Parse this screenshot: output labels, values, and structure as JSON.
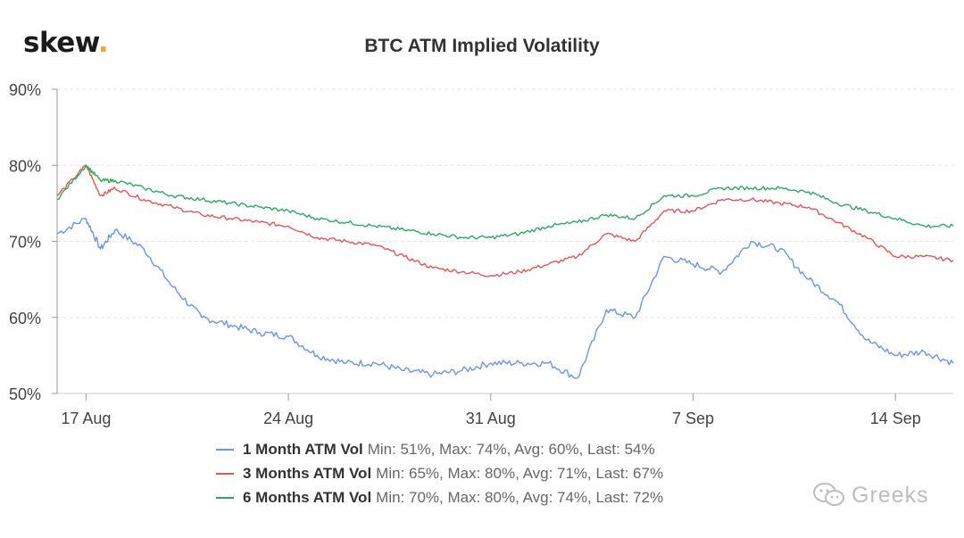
{
  "logo": {
    "text": "skew",
    "dot": "."
  },
  "watermark": {
    "text": "Greeks",
    "icon": "wechat-icon"
  },
  "chart_data": {
    "type": "line",
    "title": "BTC ATM Implied Volatility",
    "xlabel": "",
    "ylabel": "",
    "x_ticks": [
      "17 Aug",
      "24 Aug",
      "31 Aug",
      "7 Sep",
      "14 Sep"
    ],
    "y_ticks": [
      "50%",
      "60%",
      "70%",
      "80%",
      "90%"
    ],
    "ylim": [
      50,
      90
    ],
    "xlim_days": "2020-08-16 to 2020-09-16",
    "grid": true,
    "legend_position": "bottom",
    "series": [
      {
        "name": "1 Month ATM Vol",
        "stats": "Min: 51%, Max: 74%, Avg: 60%, Last: 54%",
        "color": "#6a95e8",
        "x": [
          "2020-08-16",
          "2020-08-17",
          "2020-08-17 12:00",
          "2020-08-18",
          "2020-08-19",
          "2020-08-20",
          "2020-08-21",
          "2020-08-22",
          "2020-08-23",
          "2020-08-24",
          "2020-08-25",
          "2020-08-26",
          "2020-08-27",
          "2020-08-28",
          "2020-08-29",
          "2020-08-30",
          "2020-08-31",
          "2020-09-01",
          "2020-09-02",
          "2020-09-03",
          "2020-09-04",
          "2020-09-05",
          "2020-09-06",
          "2020-09-07",
          "2020-09-08",
          "2020-09-09",
          "2020-09-10",
          "2020-09-11",
          "2020-09-12",
          "2020-09-13",
          "2020-09-14",
          "2020-09-15",
          "2020-09-16"
        ],
        "values": [
          71,
          73,
          69,
          71.5,
          69,
          64,
          60,
          59,
          58,
          57.5,
          55,
          54,
          54,
          53,
          52.5,
          53,
          54,
          54,
          54,
          52,
          61,
          60,
          68,
          67,
          66,
          70,
          69,
          65,
          62,
          57,
          55,
          55.5,
          54
        ]
      },
      {
        "name": "3 Months ATM Vol",
        "stats": "Min: 65%, Max: 80%, Avg: 71%, Last: 67%",
        "color": "#e85555",
        "x": [
          "2020-08-16",
          "2020-08-17",
          "2020-08-17 12:00",
          "2020-08-18",
          "2020-08-19",
          "2020-08-20",
          "2020-08-21",
          "2020-08-22",
          "2020-08-23",
          "2020-08-24",
          "2020-08-25",
          "2020-08-26",
          "2020-08-27",
          "2020-08-28",
          "2020-08-29",
          "2020-08-30",
          "2020-08-31",
          "2020-09-01",
          "2020-09-02",
          "2020-09-03",
          "2020-09-04",
          "2020-09-05",
          "2020-09-06",
          "2020-09-07",
          "2020-09-08",
          "2020-09-09",
          "2020-09-10",
          "2020-09-11",
          "2020-09-12",
          "2020-09-13",
          "2020-09-14",
          "2020-09-15",
          "2020-09-16"
        ],
        "values": [
          76,
          80,
          76,
          77,
          75.5,
          74.5,
          73.5,
          73,
          72.5,
          72,
          70.5,
          70,
          69.5,
          68,
          66.5,
          66,
          65.5,
          66,
          67,
          68,
          71,
          70,
          74,
          74,
          75.5,
          75.5,
          75,
          74.5,
          72.5,
          70.5,
          68,
          68,
          67.5
        ]
      },
      {
        "name": "6 Months ATM Vol",
        "stats": "Min: 70%, Max: 80%, Avg: 74%, Last: 72%",
        "color": "#2eaa5f",
        "x": [
          "2020-08-16",
          "2020-08-17",
          "2020-08-17 12:00",
          "2020-08-18",
          "2020-08-19",
          "2020-08-20",
          "2020-08-21",
          "2020-08-22",
          "2020-08-23",
          "2020-08-24",
          "2020-08-25",
          "2020-08-26",
          "2020-08-27",
          "2020-08-28",
          "2020-08-29",
          "2020-08-30",
          "2020-08-31",
          "2020-09-01",
          "2020-09-02",
          "2020-09-03",
          "2020-09-04",
          "2020-09-05",
          "2020-09-06",
          "2020-09-07",
          "2020-09-08",
          "2020-09-09",
          "2020-09-10",
          "2020-09-11",
          "2020-09-12",
          "2020-09-13",
          "2020-09-14",
          "2020-09-15",
          "2020-09-16"
        ],
        "values": [
          75.5,
          80,
          78,
          78,
          77,
          76,
          75.5,
          75,
          74.5,
          74,
          73,
          72.5,
          72,
          71.5,
          71,
          70.5,
          70.5,
          71,
          72,
          72.5,
          73.5,
          73,
          76,
          76,
          77,
          77,
          77,
          76.5,
          75,
          74,
          73,
          72,
          72
        ]
      }
    ]
  }
}
